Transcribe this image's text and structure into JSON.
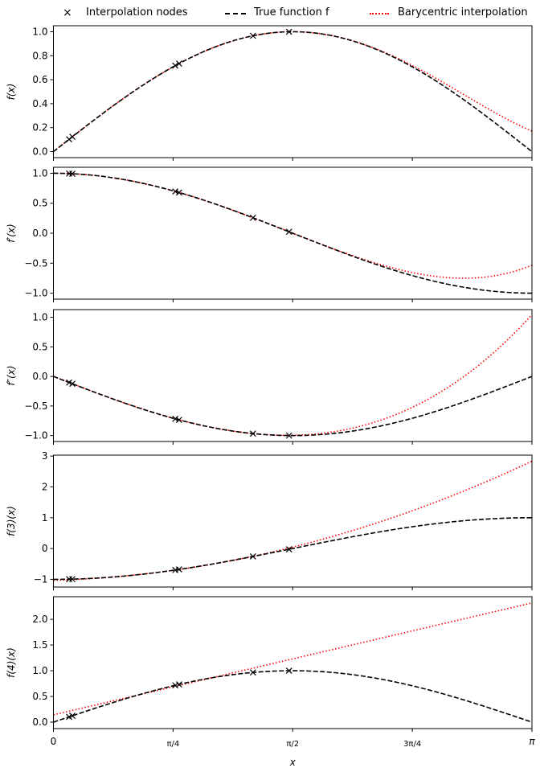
{
  "chart_data": {
    "type": "line",
    "legend": {
      "placement": "top",
      "entries": [
        {
          "label": "Interpolation nodes",
          "marker": "x",
          "color": "#000000"
        },
        {
          "label": "True function f",
          "style": "dashed",
          "color": "#000000"
        },
        {
          "label": "Barycentric interpolation",
          "style": "dotted",
          "color": "#ff0000"
        }
      ]
    },
    "xlabel": "x",
    "xlim": [
      0,
      3.14159
    ],
    "xticks": [
      {
        "value": 0,
        "label": "0"
      },
      {
        "value": 0.7854,
        "label": "π/4"
      },
      {
        "value": 1.5708,
        "label": "π/2"
      },
      {
        "value": 2.3562,
        "label": "3π/4"
      },
      {
        "value": 3.14159,
        "label": "π"
      }
    ],
    "true_function": "sin(x)",
    "interpolation_nodes_x": [
      0.103,
      0.124,
      0.8,
      0.825,
      1.31,
      1.547
    ],
    "panels": [
      {
        "ylabel": "f(x)",
        "derivative": 0,
        "ylim": [
          -0.05,
          1.05
        ],
        "yticks": [
          "0.0",
          "0.2",
          "0.4",
          "0.6",
          "0.8",
          "1.0"
        ],
        "ytick_values": [
          0,
          0.2,
          0.4,
          0.6,
          0.8,
          1.0
        ]
      },
      {
        "ylabel": "f′(x)",
        "derivative": 1,
        "ylim": [
          -1.1,
          1.1
        ],
        "yticks": [
          "−1.0",
          "−0.5",
          "0.0",
          "0.5",
          "1.0"
        ],
        "ytick_values": [
          -1,
          -0.5,
          0,
          0.5,
          1
        ]
      },
      {
        "ylabel": "f″(x)",
        "derivative": 2,
        "ylim": [
          -1.1,
          1.13
        ],
        "yticks": [
          "−1.0",
          "−0.5",
          "0.0",
          "0.5",
          "1.0"
        ],
        "ytick_values": [
          -1,
          -0.5,
          0,
          0.5,
          1
        ]
      },
      {
        "ylabel": "f(3)(x)",
        "derivative": 3,
        "ylim": [
          -1.25,
          3.03
        ],
        "yticks": [
          "−1",
          "0",
          "1",
          "2",
          "3"
        ],
        "ytick_values": [
          -1,
          0,
          1,
          2,
          3
        ]
      },
      {
        "ylabel": "f(4)(x)",
        "derivative": 4,
        "ylim": [
          -0.125,
          2.44
        ],
        "yticks": [
          "0.0",
          "0.5",
          "1.0",
          "1.5",
          "2.0"
        ],
        "ytick_values": [
          0,
          0.5,
          1,
          1.5,
          2
        ]
      }
    ]
  }
}
